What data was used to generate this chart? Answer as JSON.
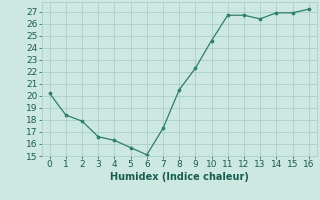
{
  "x": [
    0,
    1,
    2,
    3,
    4,
    5,
    6,
    7,
    8,
    9,
    10,
    11,
    12,
    13,
    14,
    15,
    16
  ],
  "y": [
    20.2,
    18.4,
    17.9,
    16.6,
    16.3,
    15.7,
    15.1,
    17.3,
    20.5,
    22.3,
    24.6,
    26.7,
    26.7,
    26.4,
    26.9,
    26.9,
    27.2
  ],
  "line_color": "#2e7d6e",
  "marker_color": "#2e7d6e",
  "bg_color": "#cce8e0",
  "grid_color": "#aacfc7",
  "xlabel": "Humidex (Indice chaleur)",
  "xlabel_color": "#1a5c50",
  "tick_color": "#1a5c50",
  "ylim": [
    15,
    27.8
  ],
  "xlim": [
    -0.5,
    16.5
  ],
  "yticks": [
    15,
    16,
    17,
    18,
    19,
    20,
    21,
    22,
    23,
    24,
    25,
    26,
    27
  ],
  "xticks": [
    0,
    1,
    2,
    3,
    4,
    5,
    6,
    7,
    8,
    9,
    10,
    11,
    12,
    13,
    14,
    15,
    16
  ],
  "label_fontsize": 7,
  "tick_fontsize": 6.5
}
